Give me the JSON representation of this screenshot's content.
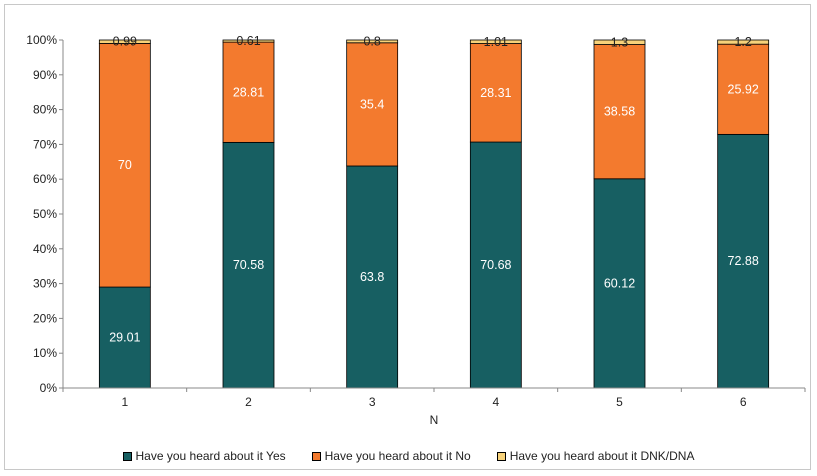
{
  "chart_data": {
    "type": "bar",
    "stacked": "percent",
    "title": "",
    "xlabel": "N",
    "ylabel": "",
    "ylim": [
      0,
      100
    ],
    "yticks": [
      "0%",
      "10%",
      "20%",
      "30%",
      "40%",
      "50%",
      "60%",
      "70%",
      "80%",
      "90%",
      "100%"
    ],
    "categories": [
      "1",
      "2",
      "3",
      "4",
      "5",
      "6"
    ],
    "series": [
      {
        "name": "Have you heard about it Yes",
        "color": "#175f62",
        "label_color": "#ffffff",
        "values": [
          29.01,
          70.58,
          63.8,
          70.68,
          60.12,
          72.88
        ]
      },
      {
        "name": "Have you heard about it No",
        "color": "#f37a2e",
        "label_color": "#ffffff",
        "values": [
          70,
          28.81,
          35.4,
          28.31,
          38.58,
          25.92
        ]
      },
      {
        "name": "Have you heard about it DNK/DNA",
        "color": "#f7d27a",
        "label_color": "#222222",
        "values": [
          0.99,
          0.61,
          0.8,
          1.01,
          1.3,
          1.2
        ]
      }
    ],
    "grid": false,
    "legend_position": "bottom"
  }
}
